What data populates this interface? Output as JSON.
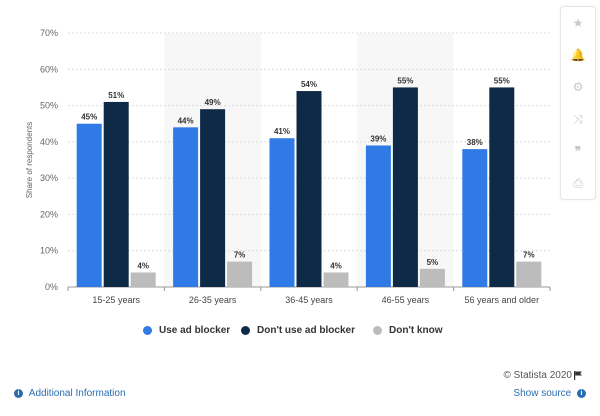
{
  "chart_data": {
    "type": "bar",
    "categories": [
      "15-25 years",
      "26-35 years",
      "36-45 years",
      "46-55 years",
      "56 years and older"
    ],
    "series": [
      {
        "name": "Use ad blocker",
        "color": "#2f7ae5",
        "values": [
          45,
          44,
          41,
          39,
          38
        ]
      },
      {
        "name": "Don't use ad blocker",
        "color": "#0e2a47",
        "values": [
          51,
          49,
          54,
          55,
          55
        ]
      },
      {
        "name": "Don't know",
        "color": "#bcbcbc",
        "values": [
          4,
          7,
          4,
          5,
          7
        ]
      }
    ],
    "data_labels": [
      [
        "45%",
        "44%",
        "41%",
        "39%",
        "38%"
      ],
      [
        "51%",
        "49%",
        "54%",
        "55%",
        "55%"
      ],
      [
        "4%",
        "7%",
        "4%",
        "5%",
        "7%"
      ]
    ],
    "ylabel": "Share of respondents",
    "ylim": [
      0,
      70
    ],
    "yticks": [
      0,
      10,
      20,
      30,
      40,
      50,
      60,
      70
    ],
    "ytick_labels": [
      "0%",
      "10%",
      "20%",
      "30%",
      "40%",
      "50%",
      "60%",
      "70%"
    ],
    "grid": true,
    "legend_position": "bottom-center"
  },
  "legend": {
    "items": [
      {
        "label": "Use ad blocker",
        "color": "#2f7ae5"
      },
      {
        "label": "Don't use ad blocker",
        "color": "#0e2a47"
      },
      {
        "label": "Don't know",
        "color": "#bcbcbc"
      }
    ]
  },
  "toolbar": {
    "icons": [
      "star-icon",
      "bell-icon",
      "gear-icon",
      "share-icon",
      "quote-icon",
      "print-icon"
    ],
    "glyphs": [
      "★",
      "🔔",
      "⚙",
      "⤨",
      "❞",
      "⎙"
    ]
  },
  "footer": {
    "copyright": "© Statista 2020",
    "additional_info": "Additional Information",
    "show_source": "Show source",
    "info_glyph": "i"
  }
}
